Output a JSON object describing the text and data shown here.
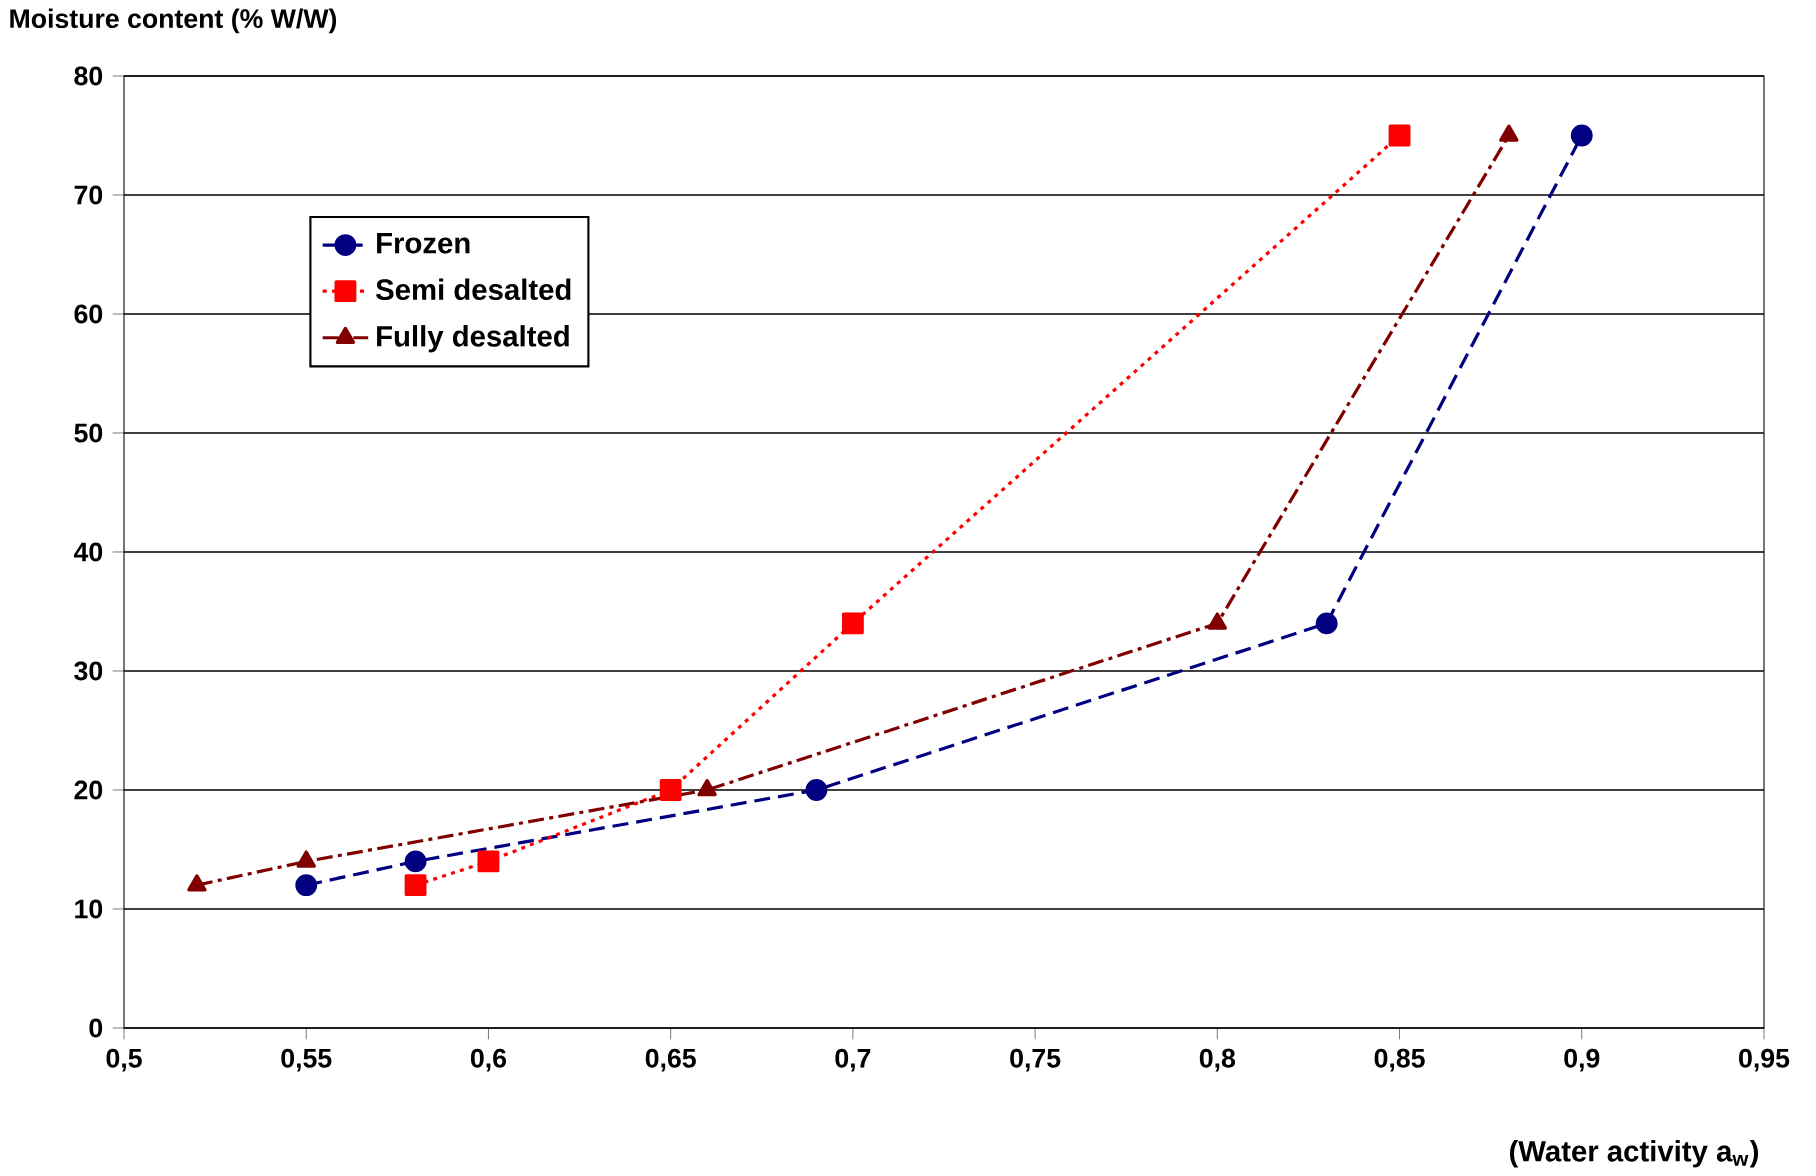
{
  "chart_data": {
    "type": "line",
    "ylabel": "Moisture content (% W/W)",
    "xlabel": "(Water activity a$_{w}$)",
    "xlim": [
      0.5,
      0.95
    ],
    "xticks": [
      {
        "value": 0.5,
        "label": "0,5"
      },
      {
        "value": 0.55,
        "label": "0,55"
      },
      {
        "value": 0.6,
        "label": "0,6"
      },
      {
        "value": 0.65,
        "label": "0,65"
      },
      {
        "value": 0.7,
        "label": "0,7"
      },
      {
        "value": 0.75,
        "label": "0,75"
      },
      {
        "value": 0.8,
        "label": "0,8"
      },
      {
        "value": 0.85,
        "label": "0,85"
      },
      {
        "value": 0.9,
        "label": "0,9"
      },
      {
        "value": 0.95,
        "label": "0,95"
      }
    ],
    "ylim": [
      0,
      80
    ],
    "yticks": [
      0,
      10,
      20,
      30,
      40,
      50,
      60,
      70,
      80
    ],
    "grid": "y",
    "legend": "top left",
    "series": [
      {
        "name": "Frozen",
        "color": "#000080",
        "marker": "circle",
        "line_style": "dashed",
        "x": [
          0.55,
          0.58,
          0.69,
          0.83,
          0.9
        ],
        "values": [
          12,
          14,
          20,
          34,
          75
        ]
      },
      {
        "name": "Semi desalted",
        "color": "#ff0000",
        "marker": "square",
        "line_style": "dotted",
        "x": [
          0.58,
          0.6,
          0.65,
          0.7,
          0.85
        ],
        "values": [
          12,
          14,
          20,
          34,
          75
        ]
      },
      {
        "name": "Fully desalted",
        "color": "#800000",
        "marker": "triangle",
        "line_style": "dashdot",
        "x": [
          0.52,
          0.55,
          0.66,
          0.8,
          0.88
        ],
        "values": [
          12,
          14,
          20,
          34,
          75
        ]
      }
    ]
  }
}
